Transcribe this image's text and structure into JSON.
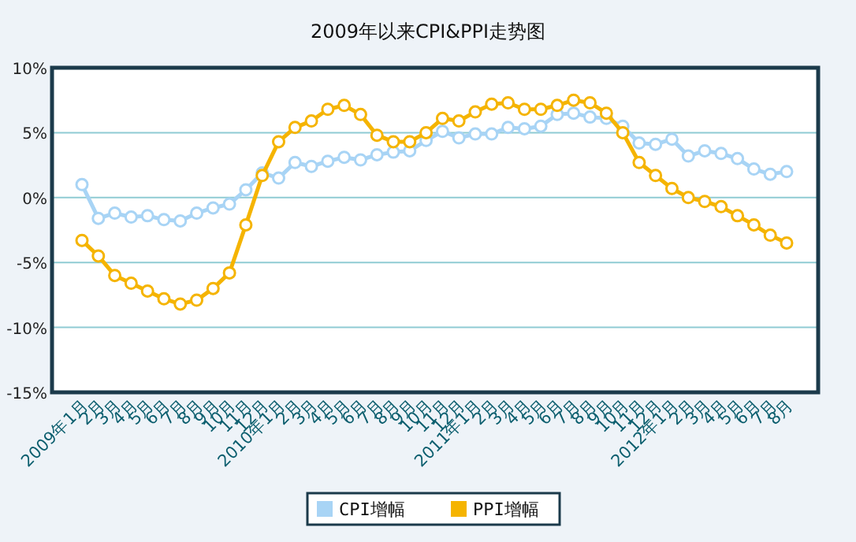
{
  "chart_data": {
    "type": "line",
    "title": "2009年以来CPI&PPI走势图",
    "categories": [
      "2009年1月",
      "2月",
      "3月",
      "4月",
      "5月",
      "6月",
      "7月",
      "8月",
      "9月",
      "10月",
      "11月",
      "12月",
      "2010年1月",
      "2月",
      "3月",
      "4月",
      "5月",
      "6月",
      "7月",
      "8月",
      "9月",
      "10月",
      "11月",
      "12月",
      "2011年1月",
      "2月",
      "3月",
      "4月",
      "5月",
      "6月",
      "7月",
      "8月",
      "9月",
      "10月",
      "11月",
      "12月",
      "2012年1月",
      "2月",
      "3月",
      "4月",
      "5月",
      "6月",
      "7月",
      "8月"
    ],
    "series": [
      {
        "name": "CPI增幅",
        "color": "#a8d4f5",
        "values": [
          1.0,
          -1.6,
          -1.2,
          -1.5,
          -1.4,
          -1.7,
          -1.8,
          -1.2,
          -0.8,
          -0.5,
          0.6,
          1.9,
          1.5,
          2.7,
          2.4,
          2.8,
          3.1,
          2.9,
          3.3,
          3.5,
          3.6,
          4.4,
          5.1,
          4.6,
          4.9,
          4.9,
          5.4,
          5.3,
          5.5,
          6.4,
          6.5,
          6.2,
          6.1,
          5.5,
          4.2,
          4.1,
          4.5,
          3.2,
          3.6,
          3.4,
          3.0,
          2.2,
          1.8,
          2.0
        ]
      },
      {
        "name": "PPI增幅",
        "color": "#f5b400",
        "values": [
          -3.3,
          -4.5,
          -6.0,
          -6.6,
          -7.2,
          -7.8,
          -8.2,
          -7.9,
          -7.0,
          -5.8,
          -2.1,
          1.7,
          4.3,
          5.4,
          5.9,
          6.8,
          7.1,
          6.4,
          4.8,
          4.3,
          4.3,
          5.0,
          6.1,
          5.9,
          6.6,
          7.2,
          7.3,
          6.8,
          6.8,
          7.1,
          7.5,
          7.3,
          6.5,
          5.0,
          2.7,
          1.7,
          0.7,
          0.0,
          -0.3,
          -0.7,
          -1.4,
          -2.1,
          -2.9,
          -3.5
        ]
      }
    ],
    "ylim": [
      -15,
      10
    ],
    "yticks": [
      {
        "value": -15,
        "label": "-15%"
      },
      {
        "value": -10,
        "label": "-10%"
      },
      {
        "value": -5,
        "label": "-5%"
      },
      {
        "value": 0,
        "label": "0%"
      },
      {
        "value": 5,
        "label": "5%"
      },
      {
        "value": 10,
        "label": "10%"
      }
    ],
    "grid": "y",
    "legend": "bottom",
    "marker": "circle"
  }
}
